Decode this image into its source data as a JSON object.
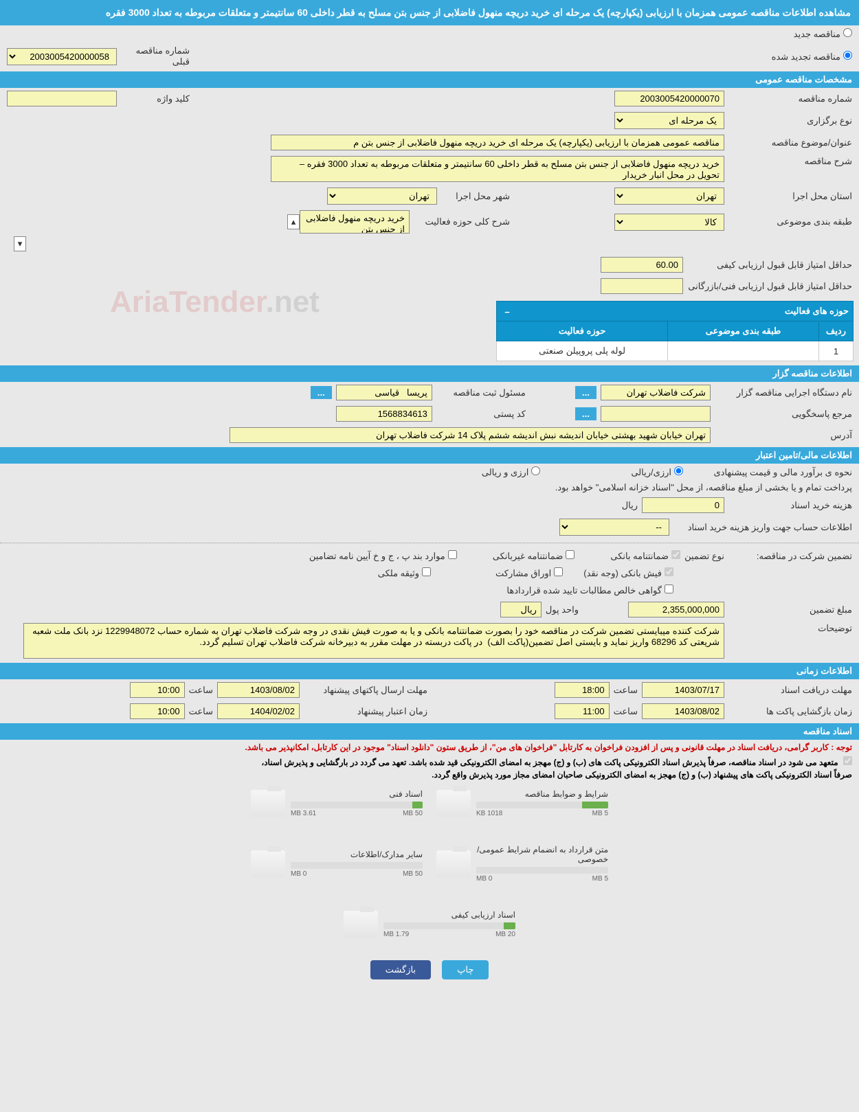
{
  "header": {
    "title": "مشاهده اطلاعات مناقصه عمومی همزمان با ارزیابی (یکپارچه) یک مرحله ای خرید دریچه منهول فاضلابی از جنس بتن مسلح به قطر داخلی 60 سانتیمتر و متعلقات مربوطه به تعداد 3000 فقره"
  },
  "tender_type": {
    "new_label": "مناقصه جدید",
    "renewed_label": "مناقصه تجدید شده",
    "prev_number_label": "شماره مناقصه قبلی",
    "prev_number_value": "2003005420000058"
  },
  "general": {
    "section_title": "مشخصات مناقصه عمومی",
    "tender_number_label": "شماره مناقصه",
    "tender_number_value": "2003005420000070",
    "keyword_label": "کلید واژه",
    "keyword_value": "",
    "holding_type_label": "نوع برگزاری",
    "holding_type_value": "یک مرحله ای",
    "title_label": "عنوان/موضوع مناقصه",
    "title_value": "مناقصه عمومی همزمان با ارزیابی (یکپارچه) یک مرحله ای خرید دریچه منهول فاضلابی از جنس بتن م",
    "desc_label": "شرح مناقصه",
    "desc_value": "خرید دریچه منهول فاضلابی از جنس بتن مسلح به قطر داخلی 60 سانتیمتر و متعلقات مربوطه به تعداد 3000 فقره – تحویل در محل انبار خریدار",
    "province_label": "استان محل اجرا",
    "province_value": "تهران",
    "city_label": "شهر محل اجرا",
    "city_value": "تهران",
    "class_label": "طبقه بندی موضوعی",
    "class_value": "کالا",
    "scope_label": "شرح کلی حوزه فعالیت",
    "scope_value": "خرید دریچه منهول فاضلابی از جنس بتن",
    "min_quality_label": "حداقل امتیاز قابل قبول ارزیابی کیفی",
    "min_quality_value": "60.00",
    "min_tech_label": "حداقل امتیاز قابل قبول ارزیابی فنی/بازرگانی",
    "min_tech_value": ""
  },
  "activity_table": {
    "header_title": "حوزه های فعالیت",
    "col_row": "ردیف",
    "col_class": "طبقه بندی موضوعی",
    "col_scope": "حوزه فعالیت",
    "rows": [
      {
        "row": "1",
        "class": "",
        "scope": "لوله پلی پروپیلن صنعتی"
      }
    ]
  },
  "gzar": {
    "section_title": "اطلاعات مناقصه گزار",
    "org_label": "نام دستگاه اجرایی مناقصه گزار",
    "org_value": "شرکت فاضلاب تهران",
    "reg_label": "مسئول ثبت مناقصه",
    "reg_value": "پریسا   قیاسی",
    "response_label": "مرجع پاسخگویی",
    "response_value": "",
    "postal_label": "کد پستی",
    "postal_value": "1568834613",
    "address_label": "آدرس",
    "address_value": "تهران خیابان شهید بهشتی خیابان اندیشه نبش اندیشه ششم پلاک 14 شرکت فاضلاب تهران"
  },
  "finance": {
    "section_title": "اطلاعات مالی/تامین اعتبار",
    "estimate_label": "نحوه ی برآورد مالی و قیمت پیشنهادی",
    "opt_rial": "ارزی/ریالی",
    "opt_both": "ارزی و ریالی",
    "payment_note": "پرداخت تمام و یا بخشی از مبلغ مناقصه، از محل \"اسناد خزانه اسلامی\" خواهد بود.",
    "doc_cost_label": "هزینه خرید اسناد",
    "doc_cost_value": "0",
    "currency": "ریال",
    "account_label": "اطلاعات حساب جهت واریز هزینه خرید اسناد",
    "account_value": "--",
    "guarantee_title_label": "تضمین شرکت در مناقصه:",
    "guarantee_type_label": "نوع تضمین",
    "g_bank": "ضمانتنامه بانکی",
    "g_nonbank": "ضمانتنامه غیربانکی",
    "g_bond": "موارد بند پ ، ج و خ آیین نامه تضامین",
    "g_fish": "فیش بانکی (وجه نقد)",
    "g_securities": "اوراق مشارکت",
    "g_property": "وثیقه ملکی",
    "g_receivables": "گواهی خالص مطالبات تایید شده قراردادها",
    "guarantee_amount_label": "مبلغ تضمین",
    "guarantee_amount_value": "2,355,000,000",
    "guarantee_unit_label": "واحد پول",
    "guarantee_unit_value": "ریال",
    "notes_label": "توضیحات",
    "notes_value": "شرکت کننده میبایستی تضمین شرکت در مناقصه خود را بصورت ضمانتنامه بانکی و یا به صورت فیش نقدی در وجه شرکت فاضلاب تهران به شماره حساب 1229948072 نزد بانک ملت شعبه شریعتی کد 68296 واریز نماید و بایستی اصل تضمین(پاکت الف)  در پاکت دربسته در مهلت مقرر به دبیرخانه شرکت فاضلاب تهران تسلیم گردد."
  },
  "timing": {
    "section_title": "اطلاعات زمانی",
    "deadline_docs_label": "مهلت دریافت اسناد",
    "deadline_docs_date": "1403/07/17",
    "deadline_docs_time": "18:00",
    "deadline_send_label": "مهلت ارسال پاکتهای پیشنهاد",
    "deadline_send_date": "1403/08/02",
    "deadline_send_time": "10:00",
    "open_label": "زمان بازگشایی پاکت ها",
    "open_date": "1403/08/02",
    "open_time": "11:00",
    "validity_label": "زمان اعتبار پیشنهاد",
    "validity_date": "1404/02/02",
    "validity_time": "10:00",
    "time_label": "ساعت"
  },
  "docs": {
    "section_title": "اسناد مناقصه",
    "note_red": "توجه : کاربر گرامی، دریافت اسناد در مهلت قانونی و پس از افزودن فراخوان به کارتابل \"فراخوان های من\"، از طریق ستون \"دانلود اسناد\" موجود در این کارتابل، امکانپذیر می باشد.",
    "note_black1": "متعهد می شود در اسناد مناقصه، صرفاً پذیرش اسناد الکترونیکی پاکت های (ب) و (ج) مهجز به امضای الکترونیکی قید شده باشد. تعهد می گردد در بارگشایی و پذیرش اسناد،",
    "note_black2": "صرفاً اسناد الکترونیکی پاکت های پیشنهاد (ب) و (ج) مهجز به امضای الکترونیکی صاحبان امضای مجاز مورد پذیرش واقع گردد.",
    "items": [
      {
        "title": "شرایط و ضوابط مناقصه",
        "used": "1018 KB",
        "max": "5 MB",
        "pct": 20
      },
      {
        "title": "اسناد فنی",
        "used": "3.61 MB",
        "max": "50 MB",
        "pct": 8
      },
      {
        "title": "متن قرارداد به انضمام شرایط عمومی/خصوصی",
        "used": "0 MB",
        "max": "5 MB",
        "pct": 0
      },
      {
        "title": "سایر مدارک/اطلاعات",
        "used": "0 MB",
        "max": "50 MB",
        "pct": 0
      },
      {
        "title": "اسناد ارزیابی کیفی",
        "used": "1.79 MB",
        "max": "20 MB",
        "pct": 9
      }
    ]
  },
  "footer": {
    "print": "چاپ",
    "back": "بازگشت"
  },
  "watermark": {
    "a": "AriaTender",
    "b": ".net"
  },
  "colors": {
    "header_blue": "#39a9dc",
    "table_blue": "#1095cc",
    "field_bg": "#f6f6b9",
    "page_bg": "#e8e8e8",
    "btn_navy": "#3a5998",
    "bar_green": "#6ab04c",
    "note_red": "#c00"
  }
}
